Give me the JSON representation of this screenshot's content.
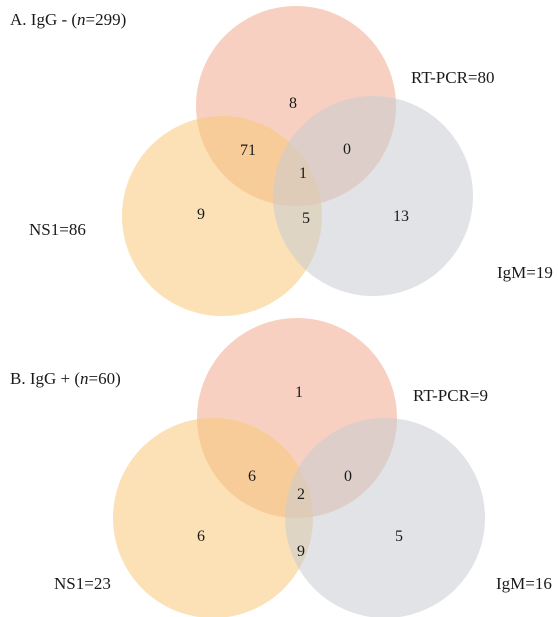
{
  "panels": [
    {
      "title_prefix": "A. IgG - (",
      "title_n": "n",
      "title_suffix": "=299)",
      "sets": {
        "pcr": "RT-PCR=80",
        "ns1": "NS1=86",
        "igm": "IgM=19"
      },
      "regions": {
        "pcr_only": "8",
        "pcr_ns1": "71",
        "pcr_igm": "0",
        "all": "1",
        "ns1_only": "9",
        "ns1_igm": "5",
        "igm_only": "13"
      }
    },
    {
      "title_prefix": "B. IgG + (",
      "title_n": "n",
      "title_suffix": "=60)",
      "sets": {
        "pcr": "RT-PCR=9",
        "ns1": "NS1=23",
        "igm": "IgM=16"
      },
      "regions": {
        "pcr_only": "1",
        "pcr_ns1": "6",
        "pcr_igm": "0",
        "all": "2",
        "ns1_only": "6",
        "ns1_igm": "9",
        "igm_only": "5"
      }
    }
  ],
  "colors": {
    "rt_pcr": "#f2a98e",
    "ns1": "#f7c978",
    "igm": "#c9ccd1"
  }
}
